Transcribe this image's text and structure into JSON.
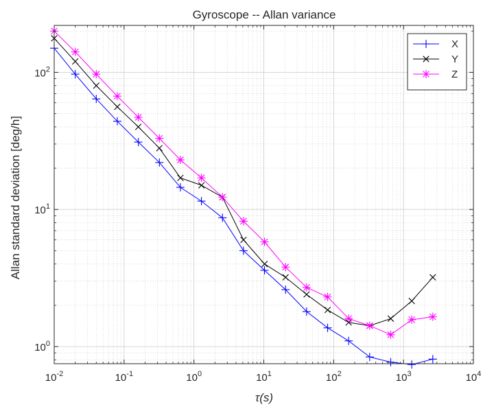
{
  "chart_data": {
    "type": "line",
    "title": "Gyroscope -- Allan variance",
    "xlabel": "τ(s)",
    "ylabel": "Allan standard deviation [deg/h]",
    "x_scale": "log",
    "y_scale": "log",
    "xlim": [
      0.01,
      10000
    ],
    "ylim": [
      0.75,
      220
    ],
    "grid": true,
    "minor_grid": true,
    "legend_position": "top-right",
    "x_ticks": [
      {
        "value": 0.01,
        "base": "10",
        "exp": "-2"
      },
      {
        "value": 0.1,
        "base": "10",
        "exp": "-1"
      },
      {
        "value": 1,
        "base": "10",
        "exp": "0"
      },
      {
        "value": 10,
        "base": "10",
        "exp": "1"
      },
      {
        "value": 100,
        "base": "10",
        "exp": "2"
      },
      {
        "value": 1000,
        "base": "10",
        "exp": "3"
      },
      {
        "value": 10000,
        "base": "10",
        "exp": "4"
      }
    ],
    "y_ticks": [
      {
        "value": 1,
        "base": "10",
        "exp": "0"
      },
      {
        "value": 10,
        "base": "10",
        "exp": "1"
      },
      {
        "value": 100,
        "base": "10",
        "exp": "2"
      }
    ],
    "x": [
      0.01,
      0.02,
      0.04,
      0.08,
      0.16,
      0.32,
      0.64,
      1.28,
      2.56,
      5.12,
      10.24,
      20.48,
      40.96,
      81.92,
      163.84,
      327.68,
      655.36,
      1310.72,
      2621.44
    ],
    "series": [
      {
        "name": "X",
        "color": "#0000ff",
        "marker": "plus",
        "values": [
          150,
          97,
          64,
          44,
          31,
          22,
          14.5,
          11.5,
          8.7,
          5.0,
          3.6,
          2.6,
          1.8,
          1.37,
          1.1,
          0.84,
          0.77,
          0.74,
          0.81
        ]
      },
      {
        "name": "Y",
        "color": "#000000",
        "marker": "x",
        "values": [
          177,
          120,
          80,
          56,
          40,
          28,
          17,
          15,
          12.3,
          6.0,
          4.0,
          3.2,
          2.4,
          1.85,
          1.5,
          1.42,
          1.6,
          2.15,
          3.2
        ]
      },
      {
        "name": "Z",
        "color": "#ff00ff",
        "marker": "star",
        "values": [
          200,
          141,
          97,
          67,
          47,
          33,
          23,
          17,
          12.3,
          8.2,
          5.8,
          3.8,
          2.7,
          2.3,
          1.6,
          1.42,
          1.22,
          1.57,
          1.65
        ]
      }
    ]
  }
}
